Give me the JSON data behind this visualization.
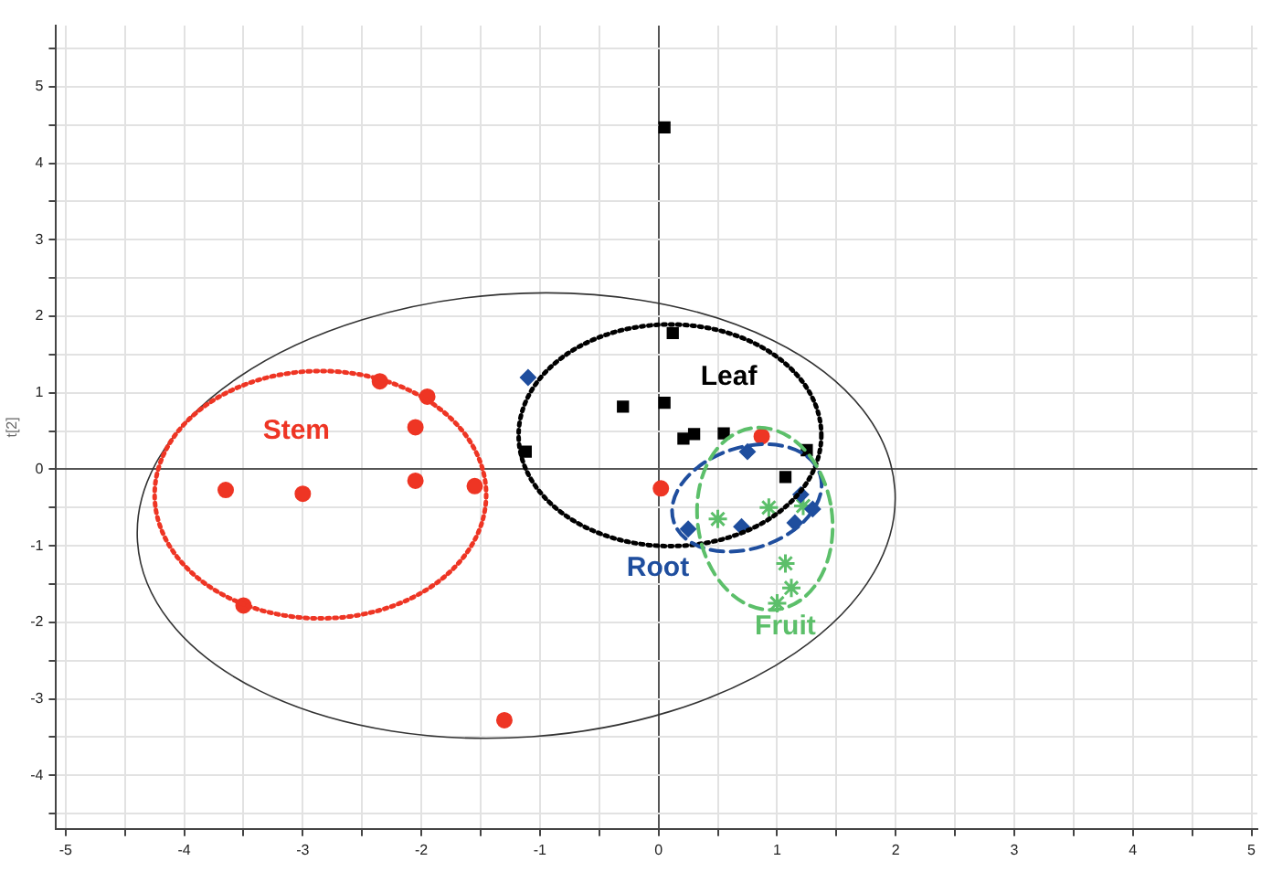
{
  "chart_data": {
    "type": "scatter",
    "ylabel": "t[2]",
    "xlim": [
      -5.08,
      5.05
    ],
    "ylim": [
      -4.7,
      5.8
    ],
    "xticks": [
      -5,
      {
        "value": -4.5,
        "label": null
      },
      -4,
      {
        "value": -3.5,
        "label": null
      },
      -3,
      {
        "value": -2.5,
        "label": null
      },
      -2,
      {
        "value": -1.5,
        "label": null
      },
      -1,
      {
        "value": -0.5,
        "label": null
      },
      0,
      {
        "value": 0.5,
        "label": null
      },
      1,
      {
        "value": 1.5,
        "label": null
      },
      2,
      {
        "value": 2.5,
        "label": null
      },
      3,
      {
        "value": 3.5,
        "label": null
      },
      4,
      {
        "value": 4.5,
        "label": null
      },
      5
    ],
    "yticks": [
      {
        "value": -4.5,
        "label": null
      },
      -4,
      {
        "value": -3.5,
        "label": null
      },
      -3,
      {
        "value": -2.5,
        "label": null
      },
      -2,
      {
        "value": -1.5,
        "label": null
      },
      -1,
      {
        "value": -0.5,
        "label": null
      },
      0,
      {
        "value": 0.5,
        "label": null
      },
      1,
      {
        "value": 1.5,
        "label": null
      },
      2,
      {
        "value": 2.5,
        "label": null
      },
      3,
      {
        "value": 3.5,
        "label": null
      },
      4,
      {
        "value": 4.5,
        "label": null
      },
      5,
      {
        "value": 5.5,
        "label": null
      }
    ],
    "grid": true,
    "legend": false,
    "annotations": [
      "Stem",
      "Leaf",
      "Root",
      "Fruit"
    ],
    "series": [
      {
        "marker": "circle",
        "color": "#ee3524",
        "x": [
          -2.35,
          -1.95,
          -2.05,
          -3.65,
          -3.0,
          -2.05,
          -1.55,
          -3.5,
          -1.3,
          0.02,
          0.87
        ],
        "values": [
          1.15,
          0.95,
          0.55,
          -0.27,
          -0.32,
          -0.15,
          -0.22,
          -1.78,
          -3.28,
          -0.25,
          0.43
        ]
      },
      {
        "marker": "square",
        "color": "#000000",
        "x": [
          0.05,
          0.12,
          -0.3,
          0.05,
          0.21,
          0.3,
          0.55,
          -1.12,
          1.07,
          1.25
        ],
        "values": [
          4.47,
          1.78,
          0.82,
          0.87,
          0.4,
          0.46,
          0.47,
          0.23,
          -0.1,
          0.25
        ]
      },
      {
        "marker": "diamond",
        "color": "#1f4e9e",
        "x": [
          -1.1,
          0.75,
          0.25,
          0.7,
          1.2,
          1.15,
          1.3
        ],
        "values": [
          1.2,
          0.23,
          -0.78,
          -0.75,
          -0.33,
          -0.7,
          -0.52
        ]
      },
      {
        "marker": "cross",
        "color": "#5cbf6a",
        "x": [
          0.5,
          0.93,
          1.07,
          1.12,
          1.0,
          1.22
        ],
        "values": [
          -0.65,
          -0.5,
          -1.23,
          -1.55,
          -1.75,
          -0.48
        ]
      }
    ]
  }
}
